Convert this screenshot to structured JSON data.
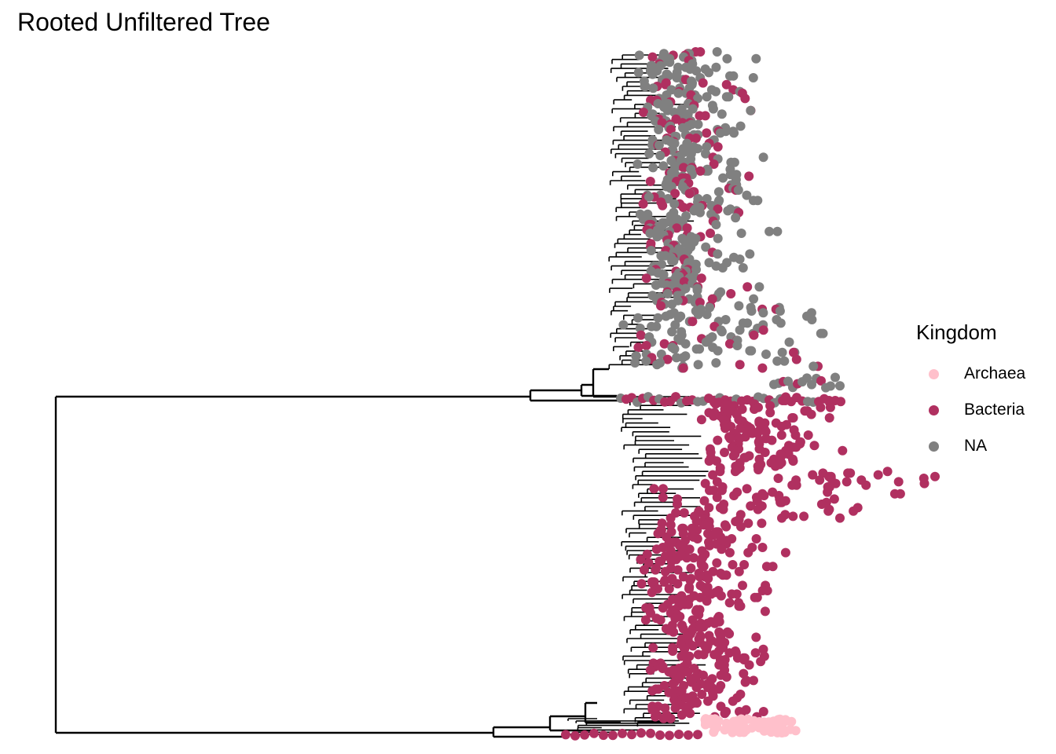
{
  "title": "Rooted Unfiltered Tree",
  "legend": {
    "title": "Kingdom",
    "items": [
      {
        "label": "Archaea",
        "color": "#FFC0CB"
      },
      {
        "label": "Bacteria",
        "color": "#B03060"
      },
      {
        "label": "NA",
        "color": "#808080"
      }
    ]
  },
  "colors": {
    "branch": "#000000"
  }
}
